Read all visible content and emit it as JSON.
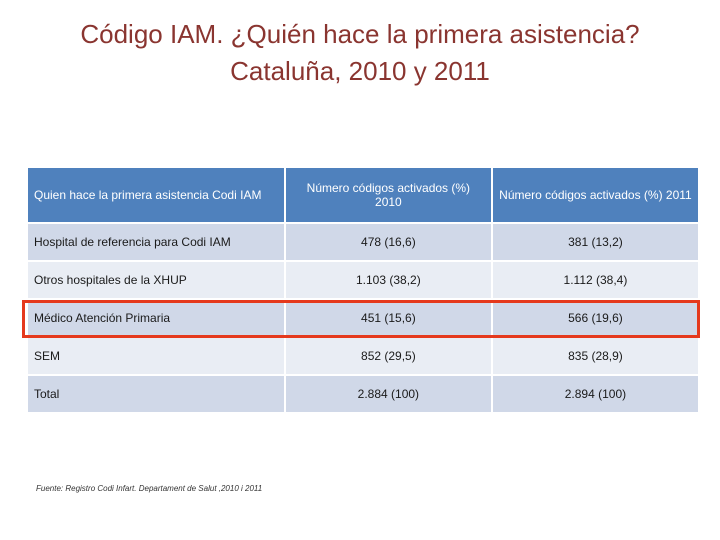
{
  "title": {
    "line1": "Código IAM. ¿Quién hace la primera asistencia?",
    "line2": "Cataluña, 2010 y 2011"
  },
  "table": {
    "headers": [
      "Quien hace la primera asistencia Codi IAM",
      "Número códigos activados (%) 2010",
      "Número códigos activados (%) 2011"
    ],
    "rows": [
      {
        "label": "Hospital de referencia para Codi IAM",
        "y2010": "478 (16,6)",
        "y2011": "381 (13,2)"
      },
      {
        "label": "Otros hospitales de la XHUP",
        "y2010": "1.103 (38,2)",
        "y2011": "1.112 (38,4)"
      },
      {
        "label": "Médico Atención Primaria",
        "y2010": "451 (15,6)",
        "y2011": "566 (19,6)"
      },
      {
        "label": "SEM",
        "y2010": "852 (29,5)",
        "y2011": "835 (28,9)"
      },
      {
        "label": "Total",
        "y2010": "2.884 (100)",
        "y2011": "2.894 (100)"
      }
    ],
    "highlighted_row": "Médico Atención Primaria"
  },
  "source": "Fuente: Registro Codi Infart. Departament de Salut ,2010 i 2011",
  "colors": {
    "title": "#8a3530",
    "header_bg": "#4f81bd",
    "row_odd": "#d0d8e8",
    "row_even": "#e9edf4",
    "highlight_border": "#e5391d"
  }
}
